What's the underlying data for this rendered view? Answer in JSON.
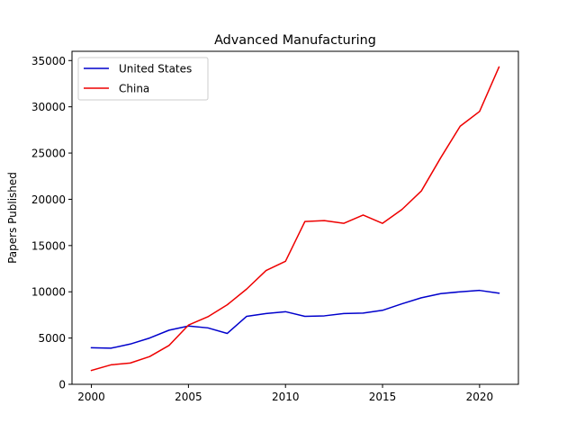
{
  "chart_data": {
    "type": "line",
    "title": "Advanced Manufacturing",
    "xlabel": "",
    "ylabel": "Papers Published",
    "xlim": [
      1999,
      2022
    ],
    "ylim": [
      0,
      36000
    ],
    "xticks": [
      2000,
      2005,
      2010,
      2015,
      2020
    ],
    "yticks": [
      0,
      5000,
      10000,
      15000,
      20000,
      25000,
      30000,
      35000
    ],
    "grid": false,
    "legend_position": "top-left",
    "x": [
      2000,
      2001,
      2002,
      2003,
      2004,
      2005,
      2006,
      2007,
      2008,
      2009,
      2010,
      2011,
      2012,
      2013,
      2014,
      2015,
      2016,
      2017,
      2018,
      2019,
      2020,
      2021
    ],
    "series": [
      {
        "name": "United States",
        "color": "#0000cc",
        "values": [
          3950,
          3900,
          4350,
          5000,
          5850,
          6300,
          6100,
          5500,
          7350,
          7650,
          7850,
          7350,
          7400,
          7650,
          7700,
          8000,
          8700,
          9350,
          9800,
          10000,
          10150,
          9850
        ]
      },
      {
        "name": "China",
        "color": "#ee0000",
        "values": [
          1500,
          2100,
          2300,
          3000,
          4200,
          6400,
          7300,
          8600,
          10300,
          12300,
          13300,
          17600,
          17700,
          17400,
          18300,
          17400,
          18900,
          20900,
          24500,
          27900,
          29500,
          34300
        ]
      }
    ]
  }
}
